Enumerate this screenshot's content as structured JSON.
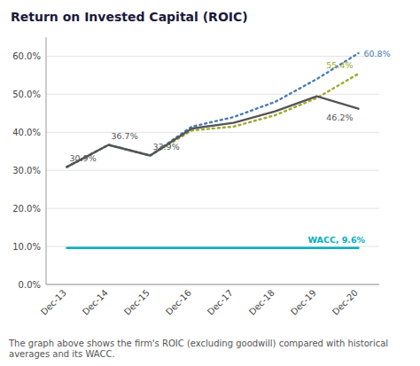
{
  "chart_data": {
    "type": "line",
    "title": "Return on Invested Capital (ROIC)",
    "footnote": "The graph above shows the firm's ROIC (excluding goodwill) compared with historical averages and its WACC.",
    "categories": [
      "Dec-13",
      "Dec-14",
      "Dec-15",
      "Dec-16",
      "Dec-17",
      "Dec-18",
      "Dec-19",
      "Dec-20"
    ],
    "series": [
      {
        "color": "#00afc0",
        "line_style": "solid",
        "values": [
          9.6,
          9.6,
          9.6,
          9.6,
          9.6,
          9.6,
          9.6,
          9.6
        ],
        "value_labels": [
          null,
          null,
          null,
          null,
          null,
          null,
          "WACC, 9.6%",
          null
        ]
      },
      {
        "color": "#9aaa2a",
        "line_style": "dotted",
        "values": [
          30.9,
          36.7,
          33.9,
          40.5,
          41.5,
          44.5,
          49.0,
          55.4
        ],
        "value_labels": [
          null,
          null,
          null,
          null,
          null,
          null,
          null,
          "55.4%"
        ]
      },
      {
        "color": "#4a7ab5",
        "line_style": "dotted",
        "values": [
          30.9,
          36.7,
          33.9,
          41.5,
          44.0,
          48.0,
          54.0,
          60.8
        ],
        "value_labels": [
          null,
          null,
          null,
          null,
          null,
          null,
          null,
          "60.8%"
        ]
      },
      {
        "color": "#555555",
        "line_style": "solid",
        "values": [
          30.9,
          36.7,
          33.9,
          41.0,
          42.5,
          45.5,
          49.5,
          46.2
        ],
        "value_labels": [
          "30.9%",
          "36.7%",
          "33.9%",
          null,
          null,
          null,
          null,
          "46.2%"
        ]
      }
    ],
    "ylim": [
      0,
      65
    ],
    "yticks": [
      {
        "value": 0,
        "label": "0.0%"
      },
      {
        "value": 10.0,
        "label": "10.0%"
      },
      {
        "value": 20.0,
        "label": "20.0%"
      },
      {
        "value": 30.0,
        "label": "30.0%"
      },
      {
        "value": 40.0,
        "label": "40.0%"
      },
      {
        "value": 50.0,
        "label": "50.0%"
      },
      {
        "value": 60.0,
        "label": "60.0%"
      }
    ],
    "grid": true
  }
}
